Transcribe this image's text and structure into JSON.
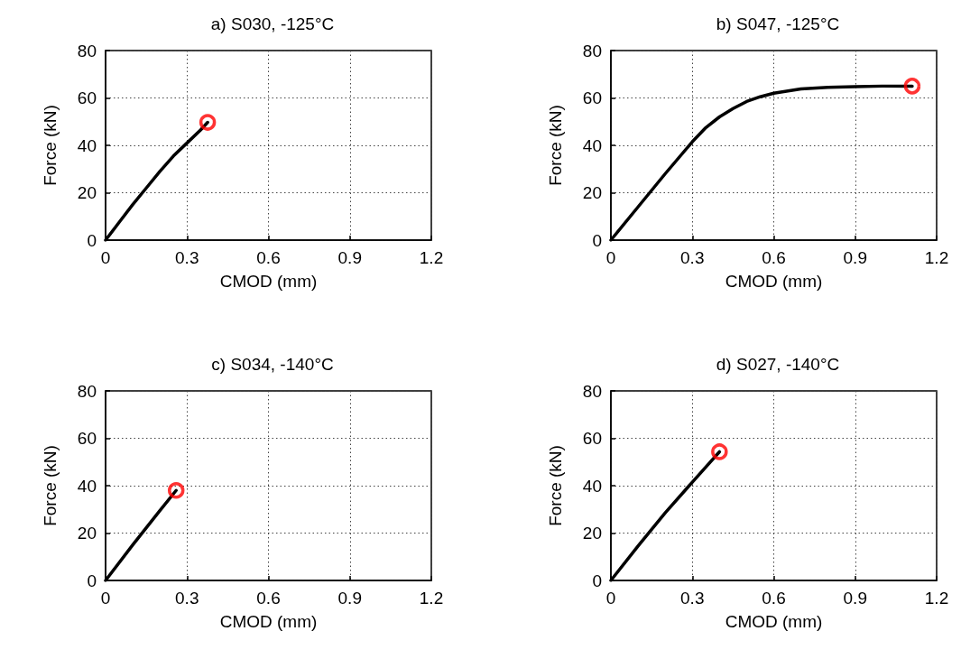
{
  "chart_data": [
    {
      "type": "line",
      "title": "a) S030, -125°C",
      "xlabel": "CMOD (mm)",
      "ylabel": "Force (kN)",
      "xlim": [
        0,
        1.2
      ],
      "xticks": [
        0,
        0.3,
        0.6,
        0.9,
        1.2
      ],
      "ylim": [
        0,
        80
      ],
      "yticks": [
        0,
        20,
        40,
        60,
        80
      ],
      "grid": true,
      "line_style": "solid",
      "series": [
        {
          "color": "#000000",
          "marker": "none",
          "x": [
            0,
            0.05,
            0.1,
            0.15,
            0.2,
            0.25,
            0.3,
            0.35,
            0.376
          ],
          "values": [
            0,
            7.5,
            15,
            22,
            29,
            35.5,
            41,
            46.5,
            49.7
          ]
        },
        {
          "type": "scatter",
          "color": "#ff0000",
          "marker": "circle",
          "x": [
            0.376
          ],
          "values": [
            49.7
          ]
        }
      ]
    },
    {
      "type": "line",
      "title": "b) S047, -125°C",
      "xlabel": "CMOD (mm)",
      "ylabel": "Force (kN)",
      "xlim": [
        0,
        1.2
      ],
      "xticks": [
        0,
        0.3,
        0.6,
        0.9,
        1.2
      ],
      "ylim": [
        0,
        80
      ],
      "yticks": [
        0,
        20,
        40,
        60,
        80
      ],
      "grid": true,
      "line_style": "solid",
      "series": [
        {
          "color": "#000000",
          "marker": "none",
          "x": [
            0,
            0.1,
            0.2,
            0.3,
            0.35,
            0.4,
            0.45,
            0.5,
            0.55,
            0.6,
            0.7,
            0.8,
            0.9,
            1.0,
            1.11
          ],
          "values": [
            0,
            14,
            28,
            41.5,
            47.5,
            52,
            55.5,
            58.5,
            60.5,
            62,
            63.8,
            64.5,
            64.8,
            65,
            65
          ]
        },
        {
          "type": "scatter",
          "color": "#ff0000",
          "marker": "circle",
          "x": [
            1.11
          ],
          "values": [
            65
          ]
        }
      ]
    },
    {
      "type": "line",
      "title": "c) S034, -140°C",
      "xlabel": "CMOD (mm)",
      "ylabel": "Force (kN)",
      "xlim": [
        0,
        1.2
      ],
      "xticks": [
        0,
        0.3,
        0.6,
        0.9,
        1.2
      ],
      "ylim": [
        0,
        80
      ],
      "yticks": [
        0,
        20,
        40,
        60,
        80
      ],
      "grid": true,
      "line_style": "solid",
      "series": [
        {
          "color": "#000000",
          "marker": "none",
          "x": [
            0,
            0.1,
            0.2,
            0.26
          ],
          "values": [
            0,
            15,
            29.5,
            38
          ]
        },
        {
          "type": "scatter",
          "color": "#ff0000",
          "marker": "circle",
          "x": [
            0.26
          ],
          "values": [
            38
          ]
        }
      ]
    },
    {
      "type": "line",
      "title": "d) S027, -140°C",
      "xlabel": "CMOD (mm)",
      "ylabel": "Force (kN)",
      "xlim": [
        0,
        1.2
      ],
      "xticks": [
        0,
        0.3,
        0.6,
        0.9,
        1.2
      ],
      "ylim": [
        0,
        80
      ],
      "yticks": [
        0,
        20,
        40,
        60,
        80
      ],
      "grid": true,
      "line_style": "solid",
      "series": [
        {
          "color": "#000000",
          "marker": "none",
          "x": [
            0,
            0.1,
            0.2,
            0.3,
            0.4
          ],
          "values": [
            0,
            14.5,
            28.5,
            41.5,
            54.3
          ]
        },
        {
          "type": "scatter",
          "color": "#ff0000",
          "marker": "circle",
          "x": [
            0.4
          ],
          "values": [
            54.3
          ]
        }
      ]
    }
  ]
}
